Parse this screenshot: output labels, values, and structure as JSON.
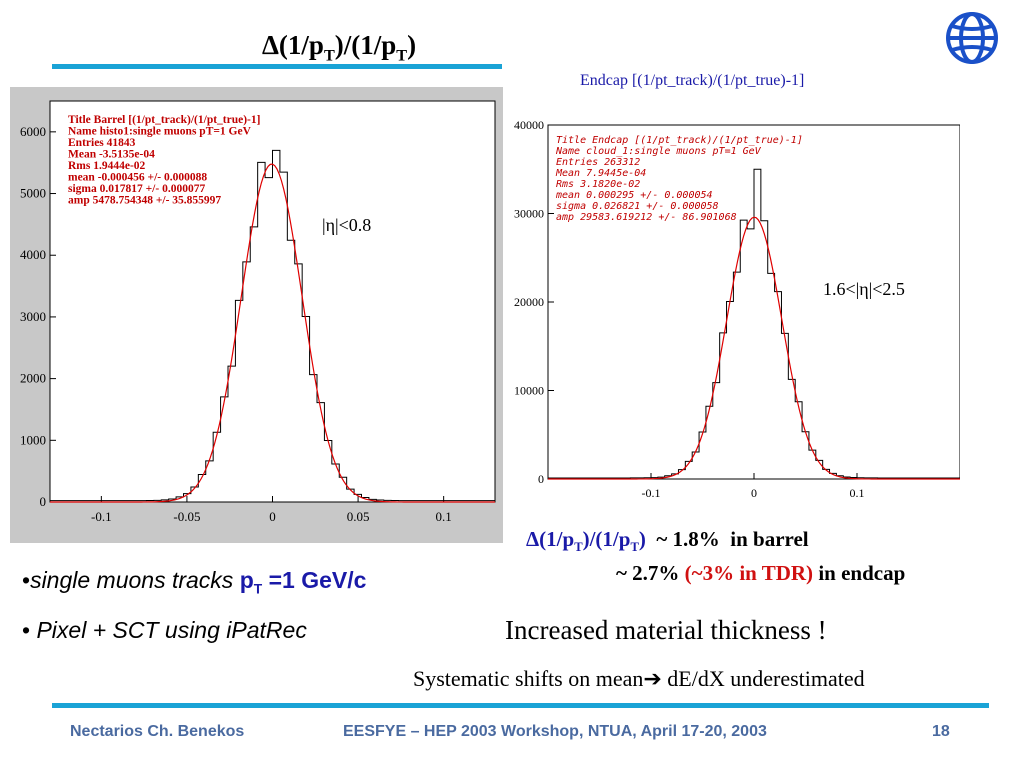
{
  "slide": {
    "title": "Δ(1/p",
    "title_sub1": "T",
    "title_mid": ")/(1/p",
    "title_sub2": "T",
    "title_end": ")",
    "accent_color": "#1aa3d6"
  },
  "plots": {
    "left": {
      "stats": [
        "Title  Barrel [(1/pt_track)/(1/pt_true)-1]",
        "Name  histo1:single muons pT=1 GeV",
        "Entries  41843",
        "Mean  -3.5135e-04",
        "Rms  1.9444e-02",
        "mean  -0.000456 +/- 0.000088",
        "sigma  0.017817 +/- 0.000077",
        "amp  5478.754348 +/- 35.855997"
      ],
      "region_label": "|η|<0.8"
    },
    "right": {
      "caption": "Endcap [(1/pt_track)/(1/pt_true)-1]",
      "stats": [
        "Title  Endcap [(1/pt_track)/(1/pt_true)-1]",
        "Name  cloud_1:single muons pT=1 GeV",
        "Entries  263312",
        "Mean  7.9445e-04",
        "Rms  3.1820e-02",
        "mean  0.000295 +/- 0.000054",
        "sigma  0.026821 +/- 0.000058",
        "amp  29583.619212 +/- 86.901068"
      ],
      "region_label": "1.6<|η|<2.5"
    }
  },
  "chart_data": [
    {
      "type": "histogram",
      "title": "Barrel [(1/pt_track)/(1/pt_true)-1]",
      "xlim": [
        -0.13,
        0.13
      ],
      "ylim": [
        0,
        6500
      ],
      "xticks": [
        "-0.1",
        "-0.05",
        "0",
        "0.05",
        "0.1"
      ],
      "yticks": [
        "0",
        "1000",
        "2000",
        "3000",
        "4000",
        "5000",
        "6000"
      ],
      "fit": {
        "mean": -0.000456,
        "sigma": 0.017817,
        "amp": 5478.754348
      },
      "peak_value": 5700
    },
    {
      "type": "histogram",
      "title": "Endcap [(1/pt_track)/(1/pt_true)-1]",
      "xlim": [
        -0.2,
        0.2
      ],
      "ylim": [
        0,
        40000
      ],
      "xticks": [
        "-0.1",
        "0",
        "0.1"
      ],
      "yticks": [
        "0",
        "10000",
        "20000",
        "30000",
        "40000"
      ],
      "fit": {
        "mean": 0.000295,
        "sigma": 0.026821,
        "amp": 29583.619212
      },
      "peak_value": 35000
    }
  ],
  "bullets": [
    {
      "prefix": "•",
      "text": "single muons tracks ",
      "p": "p",
      "sub": "T",
      "rest": " =1 GeV/c"
    },
    {
      "prefix": "• ",
      "text": "Pixel + SCT using iPatRec"
    }
  ],
  "summary": {
    "delta": "Δ(1/p",
    "sub1": "T",
    "mid": ")/(1/p",
    "sub2": "T",
    "end": ")",
    "barrel": "  ~ 1.8%  in barrel",
    "endcap_val": "~ 2.7%",
    "tdr": "(~3% in TDR)",
    "endcap": "in endcap"
  },
  "notes": {
    "increased": "Increased material thickness !",
    "systematic_a": "Systematic shifts on mean",
    "arrow": "➔",
    "systematic_b": " dE/dX underestimated"
  },
  "footer": {
    "author": "Nectarios Ch. Benekos",
    "event": "EESFYE – HEP 2003  Workshop, NTUA, April 17-20, 2003",
    "page": "18"
  }
}
